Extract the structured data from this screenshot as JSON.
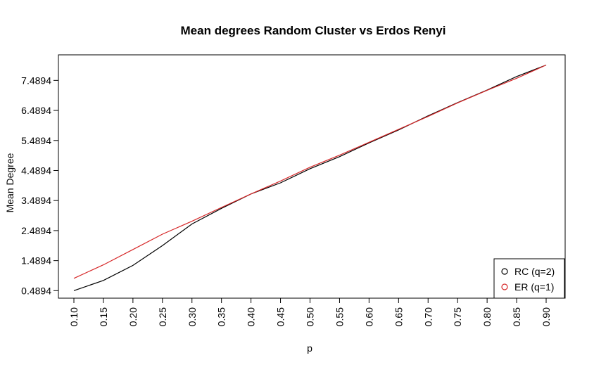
{
  "chart_data": {
    "type": "line",
    "title": "Mean degrees Random Cluster vs Erdos Renyi",
    "xlabel": "p",
    "ylabel": "Mean Degree",
    "x": [
      0.1,
      0.15,
      0.2,
      0.25,
      0.3,
      0.35,
      0.4,
      0.45,
      0.5,
      0.55,
      0.6,
      0.65,
      0.7,
      0.75,
      0.8,
      0.85,
      0.9
    ],
    "x_tick_labels": [
      "0.10",
      "0.15",
      "0.20",
      "0.25",
      "0.30",
      "0.35",
      "0.40",
      "0.45",
      "0.50",
      "0.55",
      "0.60",
      "0.65",
      "0.70",
      "0.75",
      "0.80",
      "0.85",
      "0.90"
    ],
    "y_ticks": [
      0.4894,
      1.4894,
      2.4894,
      3.4894,
      4.4894,
      5.4894,
      6.4894,
      7.4894
    ],
    "y_tick_labels": [
      "0.4894",
      "1.4894",
      "2.4894",
      "3.4894",
      "4.4894",
      "5.4894",
      "6.4894",
      "7.4894"
    ],
    "xlim": [
      0.1,
      0.9
    ],
    "ylim": [
      0.24,
      8.34
    ],
    "grid": false,
    "legend_position": "bottom-right",
    "series": [
      {
        "name": "RC (q=2)",
        "color": "#000000",
        "values": [
          0.49,
          0.83,
          1.33,
          1.99,
          2.71,
          3.23,
          3.71,
          4.08,
          4.55,
          4.95,
          5.41,
          5.84,
          6.31,
          6.75,
          7.17,
          7.62,
          8.0
        ]
      },
      {
        "name": "ER (q=1)",
        "color": "#d62728",
        "values": [
          0.9,
          1.35,
          1.86,
          2.37,
          2.8,
          3.26,
          3.71,
          4.14,
          4.6,
          5.0,
          5.43,
          5.86,
          6.29,
          6.74,
          7.16,
          7.56,
          8.0
        ]
      }
    ]
  }
}
